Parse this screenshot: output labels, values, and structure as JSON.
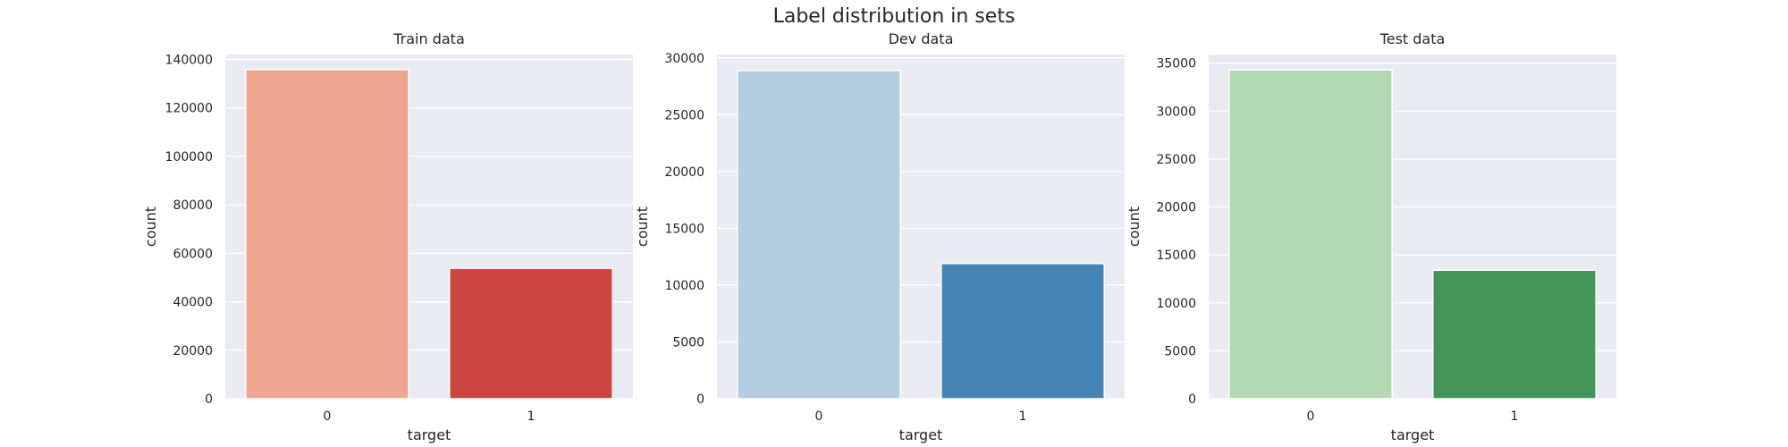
{
  "figure": {
    "title": "Label distribution in sets"
  },
  "chart_data": [
    {
      "type": "bar",
      "title": "Train data",
      "xlabel": "target",
      "ylabel": "count",
      "categories": [
        "0",
        "1"
      ],
      "values": [
        135800,
        53800
      ],
      "ylim": [
        0,
        142000
      ],
      "yticks": [
        0,
        20000,
        40000,
        60000,
        80000,
        100000,
        120000,
        140000
      ],
      "grid": true,
      "colors": [
        "#eea690",
        "#cc4640"
      ]
    },
    {
      "type": "bar",
      "title": "Dev data",
      "xlabel": "target",
      "ylabel": "count",
      "categories": [
        "0",
        "1"
      ],
      "values": [
        28900,
        11900
      ],
      "ylim": [
        0,
        30300
      ],
      "yticks": [
        0,
        5000,
        10000,
        15000,
        20000,
        25000,
        30000
      ],
      "grid": true,
      "colors": [
        "#b3cee1",
        "#4884b3"
      ]
    },
    {
      "type": "bar",
      "title": "Test data",
      "xlabel": "target",
      "ylabel": "count",
      "categories": [
        "0",
        "1"
      ],
      "values": [
        34300,
        13400
      ],
      "ylim": [
        0,
        35900
      ],
      "yticks": [
        0,
        5000,
        10000,
        15000,
        20000,
        25000,
        30000,
        35000
      ],
      "grid": true,
      "colors": [
        "#b3d9b0",
        "#439459"
      ]
    }
  ]
}
